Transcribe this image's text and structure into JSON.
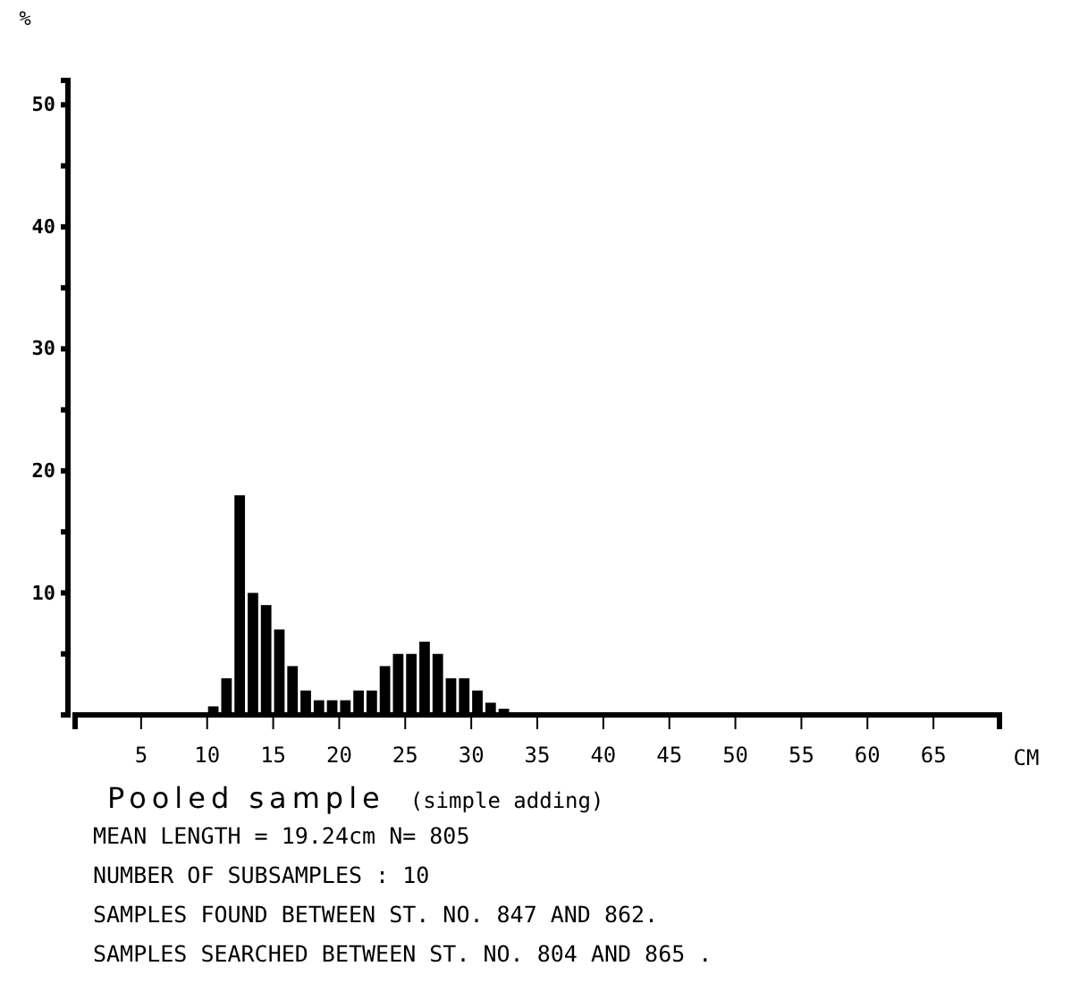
{
  "chart_data": {
    "type": "histogram",
    "title": "Pooled sample",
    "subtitle": "(simple adding)",
    "xlabel": "CM",
    "ylabel": "%",
    "bins": [
      0,
      1,
      2,
      3,
      4,
      5,
      6,
      7,
      8,
      9,
      10,
      11,
      12,
      13,
      14,
      15,
      16,
      17,
      18,
      19,
      20,
      21,
      22,
      23,
      24,
      25,
      26,
      27,
      28,
      29,
      30,
      31,
      32,
      33,
      34,
      35,
      36,
      37,
      38,
      39,
      40,
      41,
      42,
      43,
      44,
      45,
      46,
      47,
      48,
      49,
      50,
      51,
      52,
      53,
      54,
      55,
      56,
      57,
      58,
      59,
      60,
      61,
      62,
      63,
      64,
      65,
      66,
      67,
      68,
      69,
      70
    ],
    "values": [
      0,
      0,
      0,
      0,
      0,
      0,
      0,
      0,
      0,
      0,
      0.7,
      3,
      18,
      10,
      9,
      7,
      4,
      2,
      1.2,
      1.2,
      1.2,
      2,
      2,
      4,
      5,
      5,
      6,
      5,
      3,
      3,
      2,
      1,
      0.5,
      0,
      0,
      0,
      0,
      0,
      0,
      0,
      0,
      0,
      0,
      0,
      0,
      0,
      0,
      0,
      0,
      0,
      0,
      0,
      0,
      0,
      0,
      0,
      0,
      0,
      0,
      0,
      0,
      0,
      0,
      0,
      0,
      0,
      0,
      0,
      0,
      0
    ],
    "color": "#000000",
    "xlim": [
      0,
      70
    ],
    "ylim": [
      0,
      52
    ],
    "xticks": [
      5,
      10,
      15,
      20,
      25,
      30,
      35,
      40,
      45,
      50,
      55,
      60,
      65
    ],
    "yticks": [
      {
        "value": 5,
        "label": null
      },
      10,
      {
        "value": 15,
        "label": null
      },
      20,
      {
        "value": 25,
        "label": null
      },
      30,
      {
        "value": 35,
        "label": null
      },
      40,
      {
        "value": 45,
        "label": null
      },
      50
    ],
    "grid": false,
    "annotations": [
      "MEAN LENGTH = 19.24cm  N=  805",
      "NUMBER OF SUBSAMPLES : 10",
      "SAMPLES FOUND BETWEEN ST. NO. 847 AND  862.",
      "SAMPLES SEARCHED BETWEEN ST. NO. 804 AND  865 ."
    ]
  }
}
